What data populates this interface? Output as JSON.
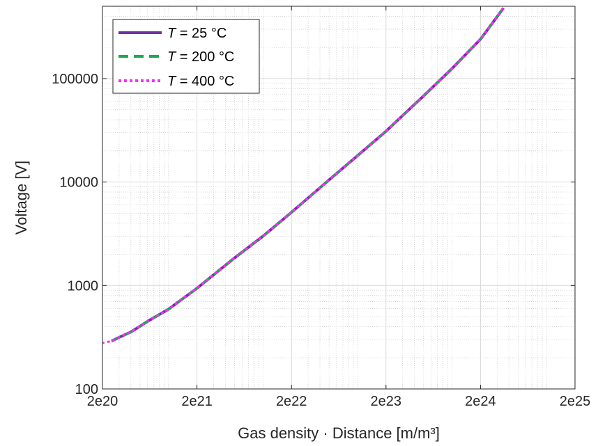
{
  "chart_data": {
    "type": "line",
    "xscale": "log",
    "yscale": "log",
    "xlim": [
      2e+20,
      2e+25
    ],
    "ylim": [
      100,
      500000
    ],
    "grid": true,
    "minor_grid": true,
    "xlabel": "Gas density · Distance [m/m³]",
    "ylabel": "Voltage [V]",
    "xticks": [
      2e+20,
      2e+21,
      2e+22,
      2e+23,
      2e+24,
      2e+25
    ],
    "xtick_labels": [
      "2e20",
      "2e21",
      "2e22",
      "2e23",
      "2e24",
      "2e25"
    ],
    "yticks": [
      100,
      1000,
      10000,
      100000
    ],
    "ytick_labels": [
      "100",
      "1000",
      "10000",
      "100000"
    ],
    "legend_position": "top-left",
    "series": [
      {
        "name_prefix": "T",
        "name_suffix": " = 25 °C",
        "color": "#7030a0",
        "style": "solid",
        "x": [
          2.5e+20,
          3e+20,
          4e+20,
          6e+20,
          1e+21,
          2e+21,
          5e+21,
          1e+22,
          2e+22,
          5e+22,
          1e+23,
          2e+23,
          5e+23,
          1e+24,
          2e+24,
          3.5e+24
        ],
        "y": [
          290,
          315,
          355,
          450,
          590,
          940,
          1850,
          3000,
          5100,
          10500,
          18000,
          31000,
          68000,
          125000,
          240000,
          480000
        ]
      },
      {
        "name_prefix": "T",
        "name_suffix": " = 200 °C",
        "color": "#1aab4e",
        "style": "dashed",
        "x": [
          2.5e+20,
          3e+20,
          4e+20,
          6e+20,
          1e+21,
          2e+21,
          5e+21,
          1e+22,
          2e+22,
          5e+22,
          1e+23,
          2e+23,
          5e+23,
          1e+24,
          2e+24,
          3.5e+24
        ],
        "y": [
          289,
          314,
          354,
          449,
          589,
          939,
          1849,
          2999,
          5099,
          10490,
          17990,
          30990,
          67950,
          124900,
          239800,
          479500
        ]
      },
      {
        "name_prefix": "T",
        "name_suffix": " = 400 °C",
        "color": "#ff2bff",
        "style": "dotted",
        "x": [
          1.5e+20,
          2e+20,
          2.5e+20,
          3e+20,
          4e+20,
          6e+20,
          1e+21,
          2e+21,
          5e+21,
          1e+22,
          2e+22,
          5e+22,
          1e+23,
          2e+23,
          5e+23,
          1e+24,
          2e+24,
          3.5e+24
        ],
        "y": [
          265,
          278,
          290,
          315,
          355,
          450,
          590,
          940,
          1850,
          3000,
          5100,
          10500,
          18000,
          31000,
          68000,
          125000,
          240000,
          480000
        ]
      }
    ]
  }
}
